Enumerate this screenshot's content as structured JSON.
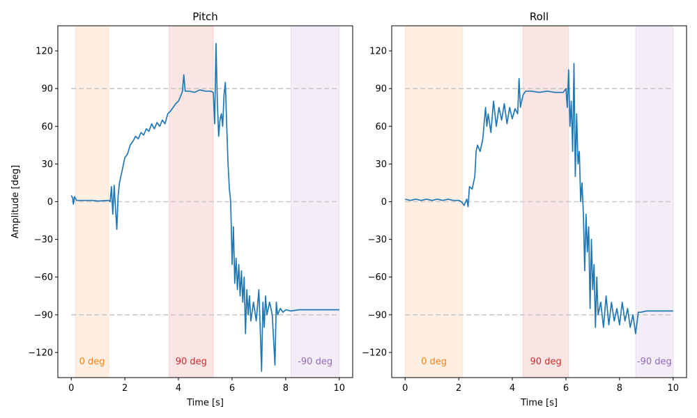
{
  "chart_data": [
    {
      "type": "line",
      "title": "Pitch",
      "xlabel": "Time [s]",
      "ylabel": "Amplitude [deg]",
      "xlim": [
        -0.5,
        10.5
      ],
      "ylim": [
        -140,
        140
      ],
      "xticks": [
        0,
        2,
        4,
        6,
        8,
        10
      ],
      "yticks": [
        120,
        90,
        60,
        30,
        0,
        -30,
        -60,
        -90,
        -120
      ],
      "ytick_labels": [
        "120",
        "90",
        "60",
        "30",
        "0",
        "−30",
        "−60",
        "−90",
        "−120"
      ],
      "reference_lines": [
        90,
        0,
        -90
      ],
      "grid": false,
      "bands": [
        {
          "label": "0 deg",
          "x0": 0.15,
          "x1": 1.4,
          "color": "#ff7f0e"
        },
        {
          "label": "90 deg",
          "x0": 3.65,
          "x1": 5.3,
          "color": "#d62728"
        },
        {
          "label": "-90 deg",
          "x0": 8.2,
          "x1": 10.0,
          "color": "#9467bd"
        }
      ],
      "series": [
        {
          "color": "#1f77b4",
          "points": [
            [
              0.0,
              5
            ],
            [
              0.05,
              3
            ],
            [
              0.08,
              -2
            ],
            [
              0.12,
              4
            ],
            [
              0.2,
              1
            ],
            [
              0.4,
              1
            ],
            [
              0.6,
              1
            ],
            [
              0.8,
              1
            ],
            [
              1.0,
              0.5
            ],
            [
              1.2,
              0.8
            ],
            [
              1.4,
              1
            ],
            [
              1.45,
              0
            ],
            [
              1.5,
              12
            ],
            [
              1.55,
              -10
            ],
            [
              1.6,
              13
            ],
            [
              1.65,
              -5
            ],
            [
              1.7,
              -22
            ],
            [
              1.75,
              5
            ],
            [
              1.8,
              15
            ],
            [
              1.9,
              25
            ],
            [
              2.0,
              35
            ],
            [
              2.1,
              38
            ],
            [
              2.2,
              45
            ],
            [
              2.3,
              48
            ],
            [
              2.4,
              52
            ],
            [
              2.5,
              50
            ],
            [
              2.6,
              55
            ],
            [
              2.7,
              53
            ],
            [
              2.8,
              58
            ],
            [
              2.9,
              56
            ],
            [
              3.0,
              62
            ],
            [
              3.1,
              58
            ],
            [
              3.2,
              63
            ],
            [
              3.3,
              60
            ],
            [
              3.4,
              65
            ],
            [
              3.5,
              62
            ],
            [
              3.6,
              70
            ],
            [
              3.7,
              72
            ],
            [
              3.8,
              75
            ],
            [
              3.9,
              78
            ],
            [
              4.0,
              80
            ],
            [
              4.1,
              85
            ],
            [
              4.15,
              88
            ],
            [
              4.2,
              101
            ],
            [
              4.25,
              88
            ],
            [
              4.4,
              88
            ],
            [
              4.6,
              87
            ],
            [
              4.8,
              89
            ],
            [
              5.0,
              88
            ],
            [
              5.2,
              88
            ],
            [
              5.3,
              87
            ],
            [
              5.35,
              62
            ],
            [
              5.4,
              126
            ],
            [
              5.45,
              80
            ],
            [
              5.5,
              52
            ],
            [
              5.55,
              65
            ],
            [
              5.6,
              70
            ],
            [
              5.65,
              60
            ],
            [
              5.7,
              85
            ],
            [
              5.75,
              95
            ],
            [
              5.8,
              60
            ],
            [
              5.85,
              30
            ],
            [
              5.9,
              10
            ],
            [
              5.95,
              0
            ],
            [
              6.0,
              -50
            ],
            [
              6.05,
              -20
            ],
            [
              6.1,
              -65
            ],
            [
              6.15,
              -45
            ],
            [
              6.2,
              -70
            ],
            [
              6.25,
              -50
            ],
            [
              6.3,
              -75
            ],
            [
              6.35,
              -55
            ],
            [
              6.4,
              -80
            ],
            [
              6.45,
              -60
            ],
            [
              6.5,
              -105
            ],
            [
              6.55,
              -70
            ],
            [
              6.6,
              -90
            ],
            [
              6.65,
              -75
            ],
            [
              6.7,
              -95
            ],
            [
              6.8,
              -80
            ],
            [
              6.9,
              -95
            ],
            [
              7.0,
              -70
            ],
            [
              7.05,
              -100
            ],
            [
              7.1,
              -135
            ],
            [
              7.15,
              -80
            ],
            [
              7.2,
              -100
            ],
            [
              7.25,
              -75
            ],
            [
              7.3,
              -90
            ],
            [
              7.4,
              -80
            ],
            [
              7.5,
              -90
            ],
            [
              7.6,
              -130
            ],
            [
              7.65,
              -80
            ],
            [
              7.7,
              -90
            ],
            [
              7.8,
              -85
            ],
            [
              7.9,
              -88
            ],
            [
              8.0,
              -86
            ],
            [
              8.2,
              -87
            ],
            [
              8.5,
              -86
            ],
            [
              9.0,
              -86
            ],
            [
              9.5,
              -86
            ],
            [
              10.0,
              -86
            ]
          ]
        }
      ]
    },
    {
      "type": "line",
      "title": "Roll",
      "xlabel": "Time [s]",
      "ylabel": "",
      "xlim": [
        -0.5,
        10.5
      ],
      "ylim": [
        -140,
        140
      ],
      "xticks": [
        0,
        2,
        4,
        6,
        8,
        10
      ],
      "yticks": [
        120,
        90,
        60,
        30,
        0,
        -30,
        -60,
        -90,
        -120
      ],
      "ytick_labels": [
        "120",
        "90",
        "60",
        "30",
        "0",
        "−30",
        "−60",
        "−90",
        "−120"
      ],
      "reference_lines": [
        90,
        0,
        -90
      ],
      "grid": false,
      "bands": [
        {
          "label": "0 deg",
          "x0": 0.0,
          "x1": 2.15,
          "color": "#ff7f0e"
        },
        {
          "label": "90 deg",
          "x0": 4.4,
          "x1": 6.1,
          "color": "#d62728"
        },
        {
          "label": "-90 deg",
          "x0": 8.6,
          "x1": 10.0,
          "color": "#9467bd"
        }
      ],
      "series": [
        {
          "color": "#1f77b4",
          "points": [
            [
              0.0,
              2
            ],
            [
              0.2,
              1
            ],
            [
              0.4,
              2
            ],
            [
              0.6,
              1
            ],
            [
              0.8,
              2
            ],
            [
              1.0,
              1
            ],
            [
              1.2,
              2
            ],
            [
              1.4,
              1
            ],
            [
              1.6,
              2
            ],
            [
              1.8,
              1
            ],
            [
              2.0,
              1
            ],
            [
              2.1,
              0
            ],
            [
              2.2,
              -3
            ],
            [
              2.3,
              2
            ],
            [
              2.35,
              -4
            ],
            [
              2.4,
              12
            ],
            [
              2.5,
              10
            ],
            [
              2.6,
              20
            ],
            [
              2.65,
              40
            ],
            [
              2.7,
              45
            ],
            [
              2.8,
              40
            ],
            [
              2.9,
              50
            ],
            [
              3.0,
              75
            ],
            [
              3.05,
              60
            ],
            [
              3.1,
              70
            ],
            [
              3.2,
              55
            ],
            [
              3.3,
              80
            ],
            [
              3.4,
              60
            ],
            [
              3.5,
              75
            ],
            [
              3.6,
              65
            ],
            [
              3.7,
              78
            ],
            [
              3.8,
              62
            ],
            [
              3.9,
              75
            ],
            [
              4.0,
              66
            ],
            [
              4.1,
              74
            ],
            [
              4.2,
              70
            ],
            [
              4.25,
              98
            ],
            [
              4.3,
              75
            ],
            [
              4.4,
              85
            ],
            [
              4.5,
              88
            ],
            [
              4.7,
              88
            ],
            [
              5.0,
              87
            ],
            [
              5.3,
              88
            ],
            [
              5.6,
              87
            ],
            [
              5.9,
              87
            ],
            [
              6.0,
              90
            ],
            [
              6.05,
              75
            ],
            [
              6.1,
              105
            ],
            [
              6.15,
              60
            ],
            [
              6.2,
              80
            ],
            [
              6.25,
              40
            ],
            [
              6.3,
              110
            ],
            [
              6.35,
              20
            ],
            [
              6.4,
              70
            ],
            [
              6.45,
              30
            ],
            [
              6.5,
              40
            ],
            [
              6.55,
              0
            ],
            [
              6.6,
              15
            ],
            [
              6.65,
              -10
            ],
            [
              6.7,
              -55
            ],
            [
              6.75,
              -10
            ],
            [
              6.8,
              -40
            ],
            [
              6.85,
              -20
            ],
            [
              6.9,
              -85
            ],
            [
              6.95,
              -30
            ],
            [
              7.0,
              -70
            ],
            [
              7.05,
              -50
            ],
            [
              7.1,
              -100
            ],
            [
              7.15,
              -60
            ],
            [
              7.2,
              -90
            ],
            [
              7.3,
              -80
            ],
            [
              7.4,
              -100
            ],
            [
              7.5,
              -75
            ],
            [
              7.6,
              -98
            ],
            [
              7.7,
              -80
            ],
            [
              7.8,
              -95
            ],
            [
              7.9,
              -85
            ],
            [
              8.0,
              -98
            ],
            [
              8.1,
              -80
            ],
            [
              8.2,
              -95
            ],
            [
              8.3,
              -85
            ],
            [
              8.4,
              -100
            ],
            [
              8.5,
              -90
            ],
            [
              8.6,
              -105
            ],
            [
              8.7,
              -88
            ],
            [
              8.8,
              -88
            ],
            [
              9.0,
              -87
            ],
            [
              9.5,
              -87
            ],
            [
              10.0,
              -87
            ]
          ]
        }
      ]
    }
  ]
}
